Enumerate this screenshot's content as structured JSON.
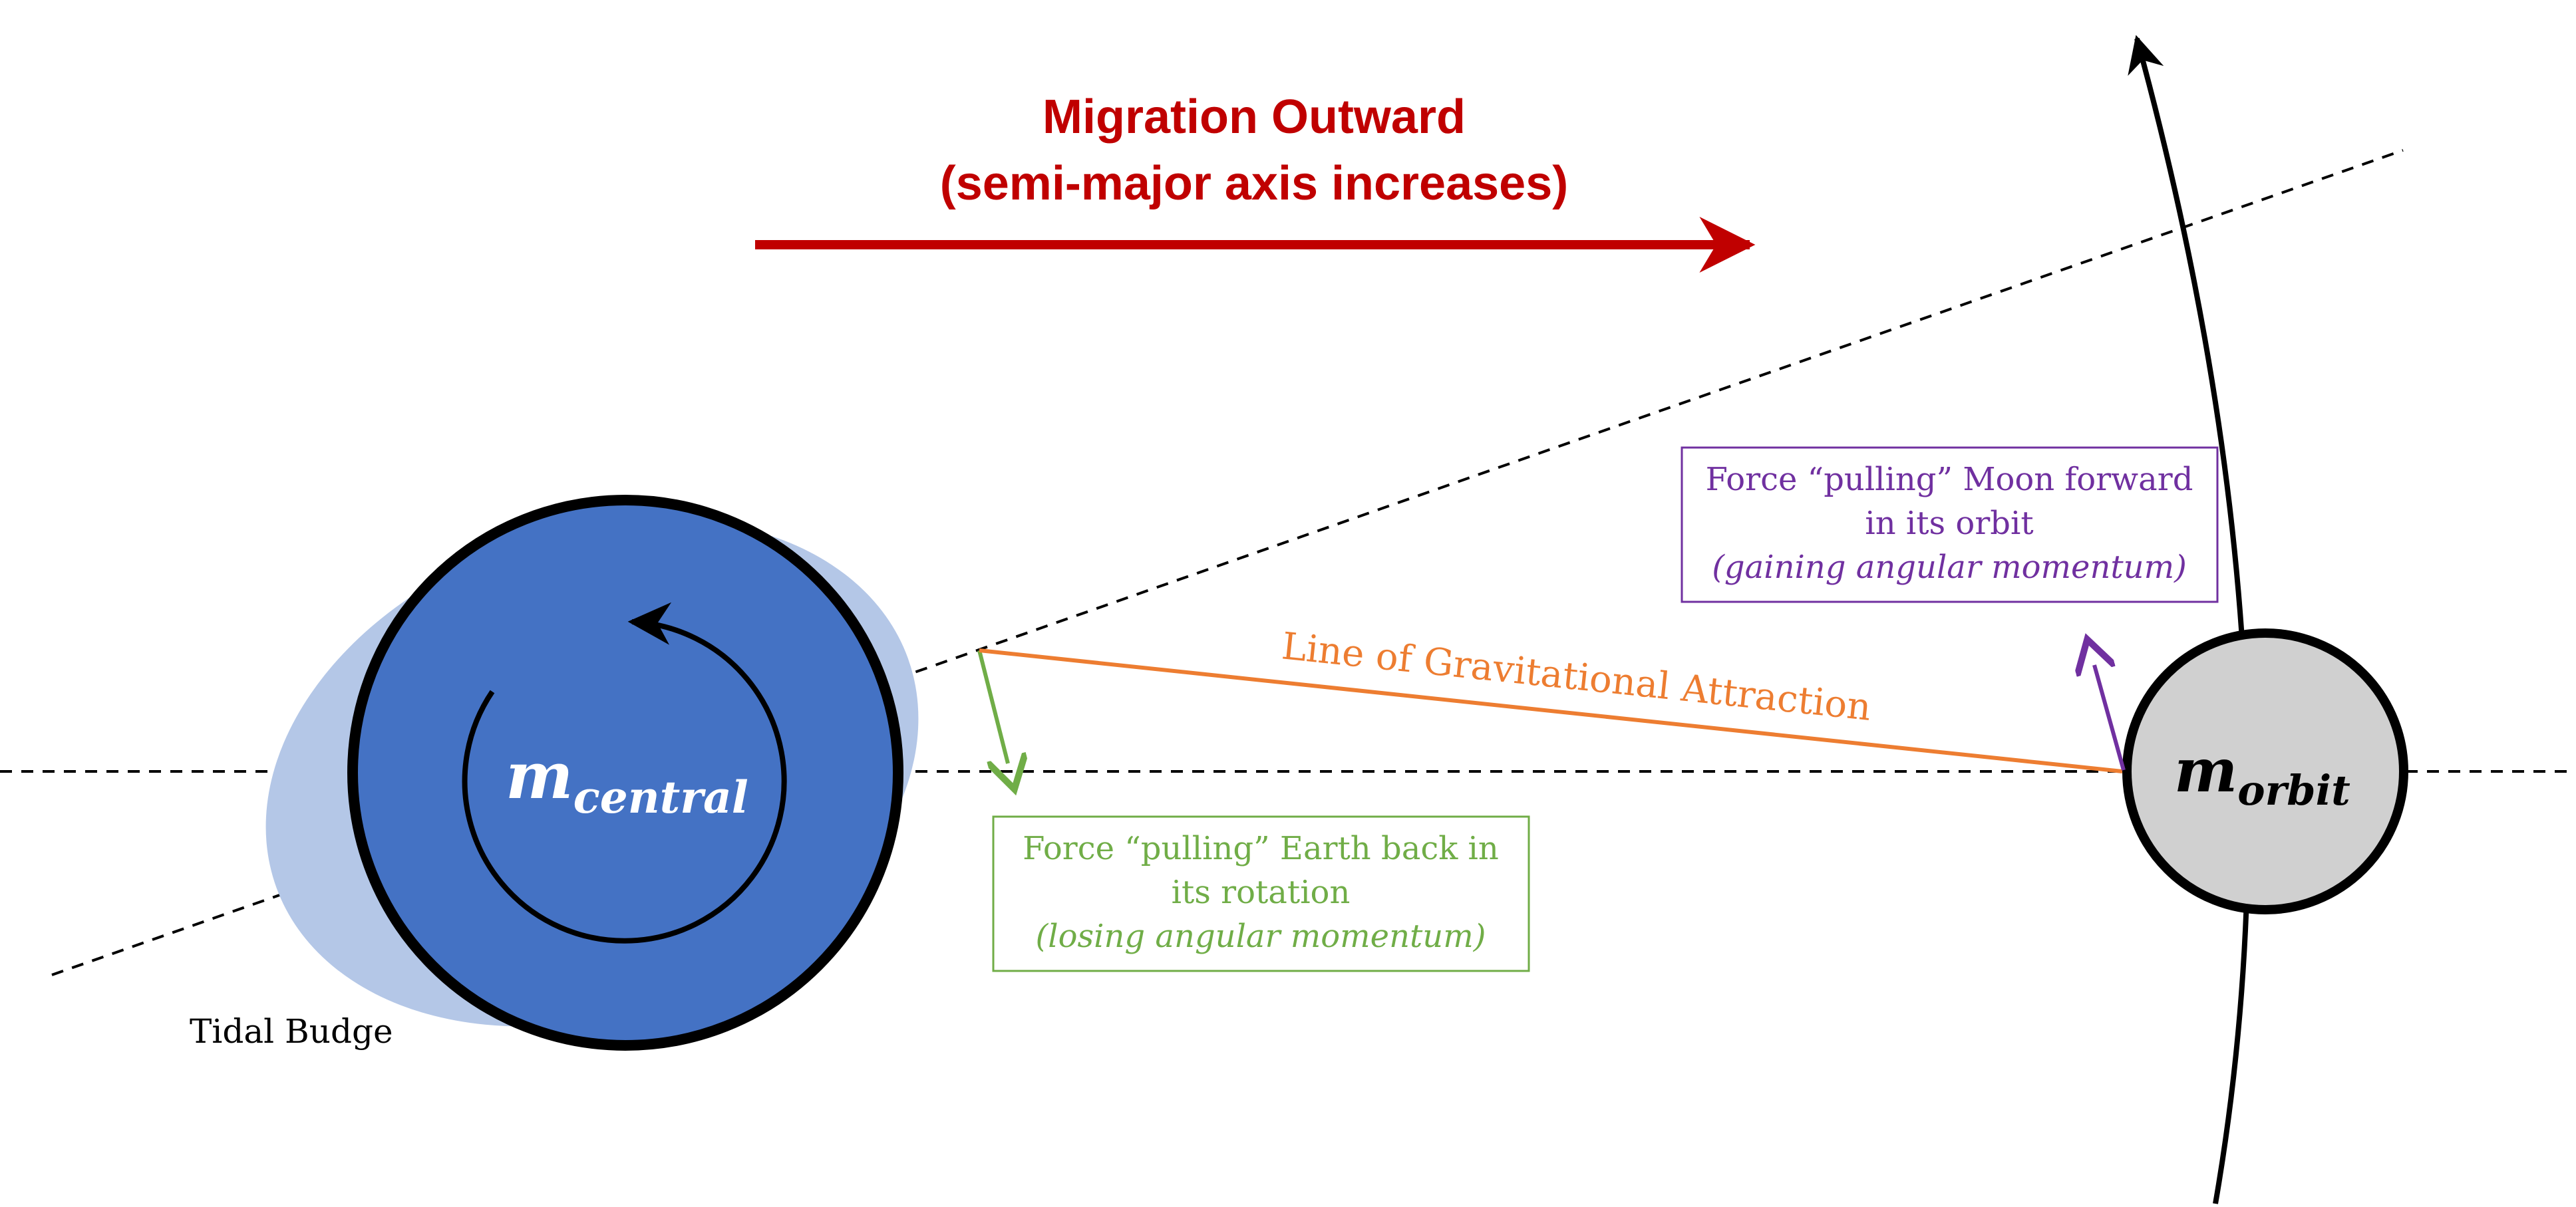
{
  "title": {
    "line1": "Migration Outward",
    "line2": "(semi-major axis increases)"
  },
  "central_body": {
    "symbol": "m",
    "subscript": "central"
  },
  "orbiting_body": {
    "symbol": "m",
    "subscript": "orbit"
  },
  "bulge_label": "Tidal Budge",
  "attraction_label": "Line of Gravitational Attraction",
  "earth_force_box": {
    "line1": "Force “pulling” Earth back in",
    "line2": "its rotation",
    "line3": "(losing angular momentum)"
  },
  "moon_force_box": {
    "line1": "Force “pulling” Moon forward",
    "line2": "in its orbit",
    "line3": "(gaining angular momentum)"
  },
  "colors": {
    "title_red": "#c00000",
    "planet_blue": "#4472c4",
    "bulge_blue": "#b4c7e7",
    "moon_gray": "#d0d0d0",
    "orange": "#ed7d31",
    "green": "#70ad47",
    "purple": "#7030a0",
    "black": "#000000"
  }
}
